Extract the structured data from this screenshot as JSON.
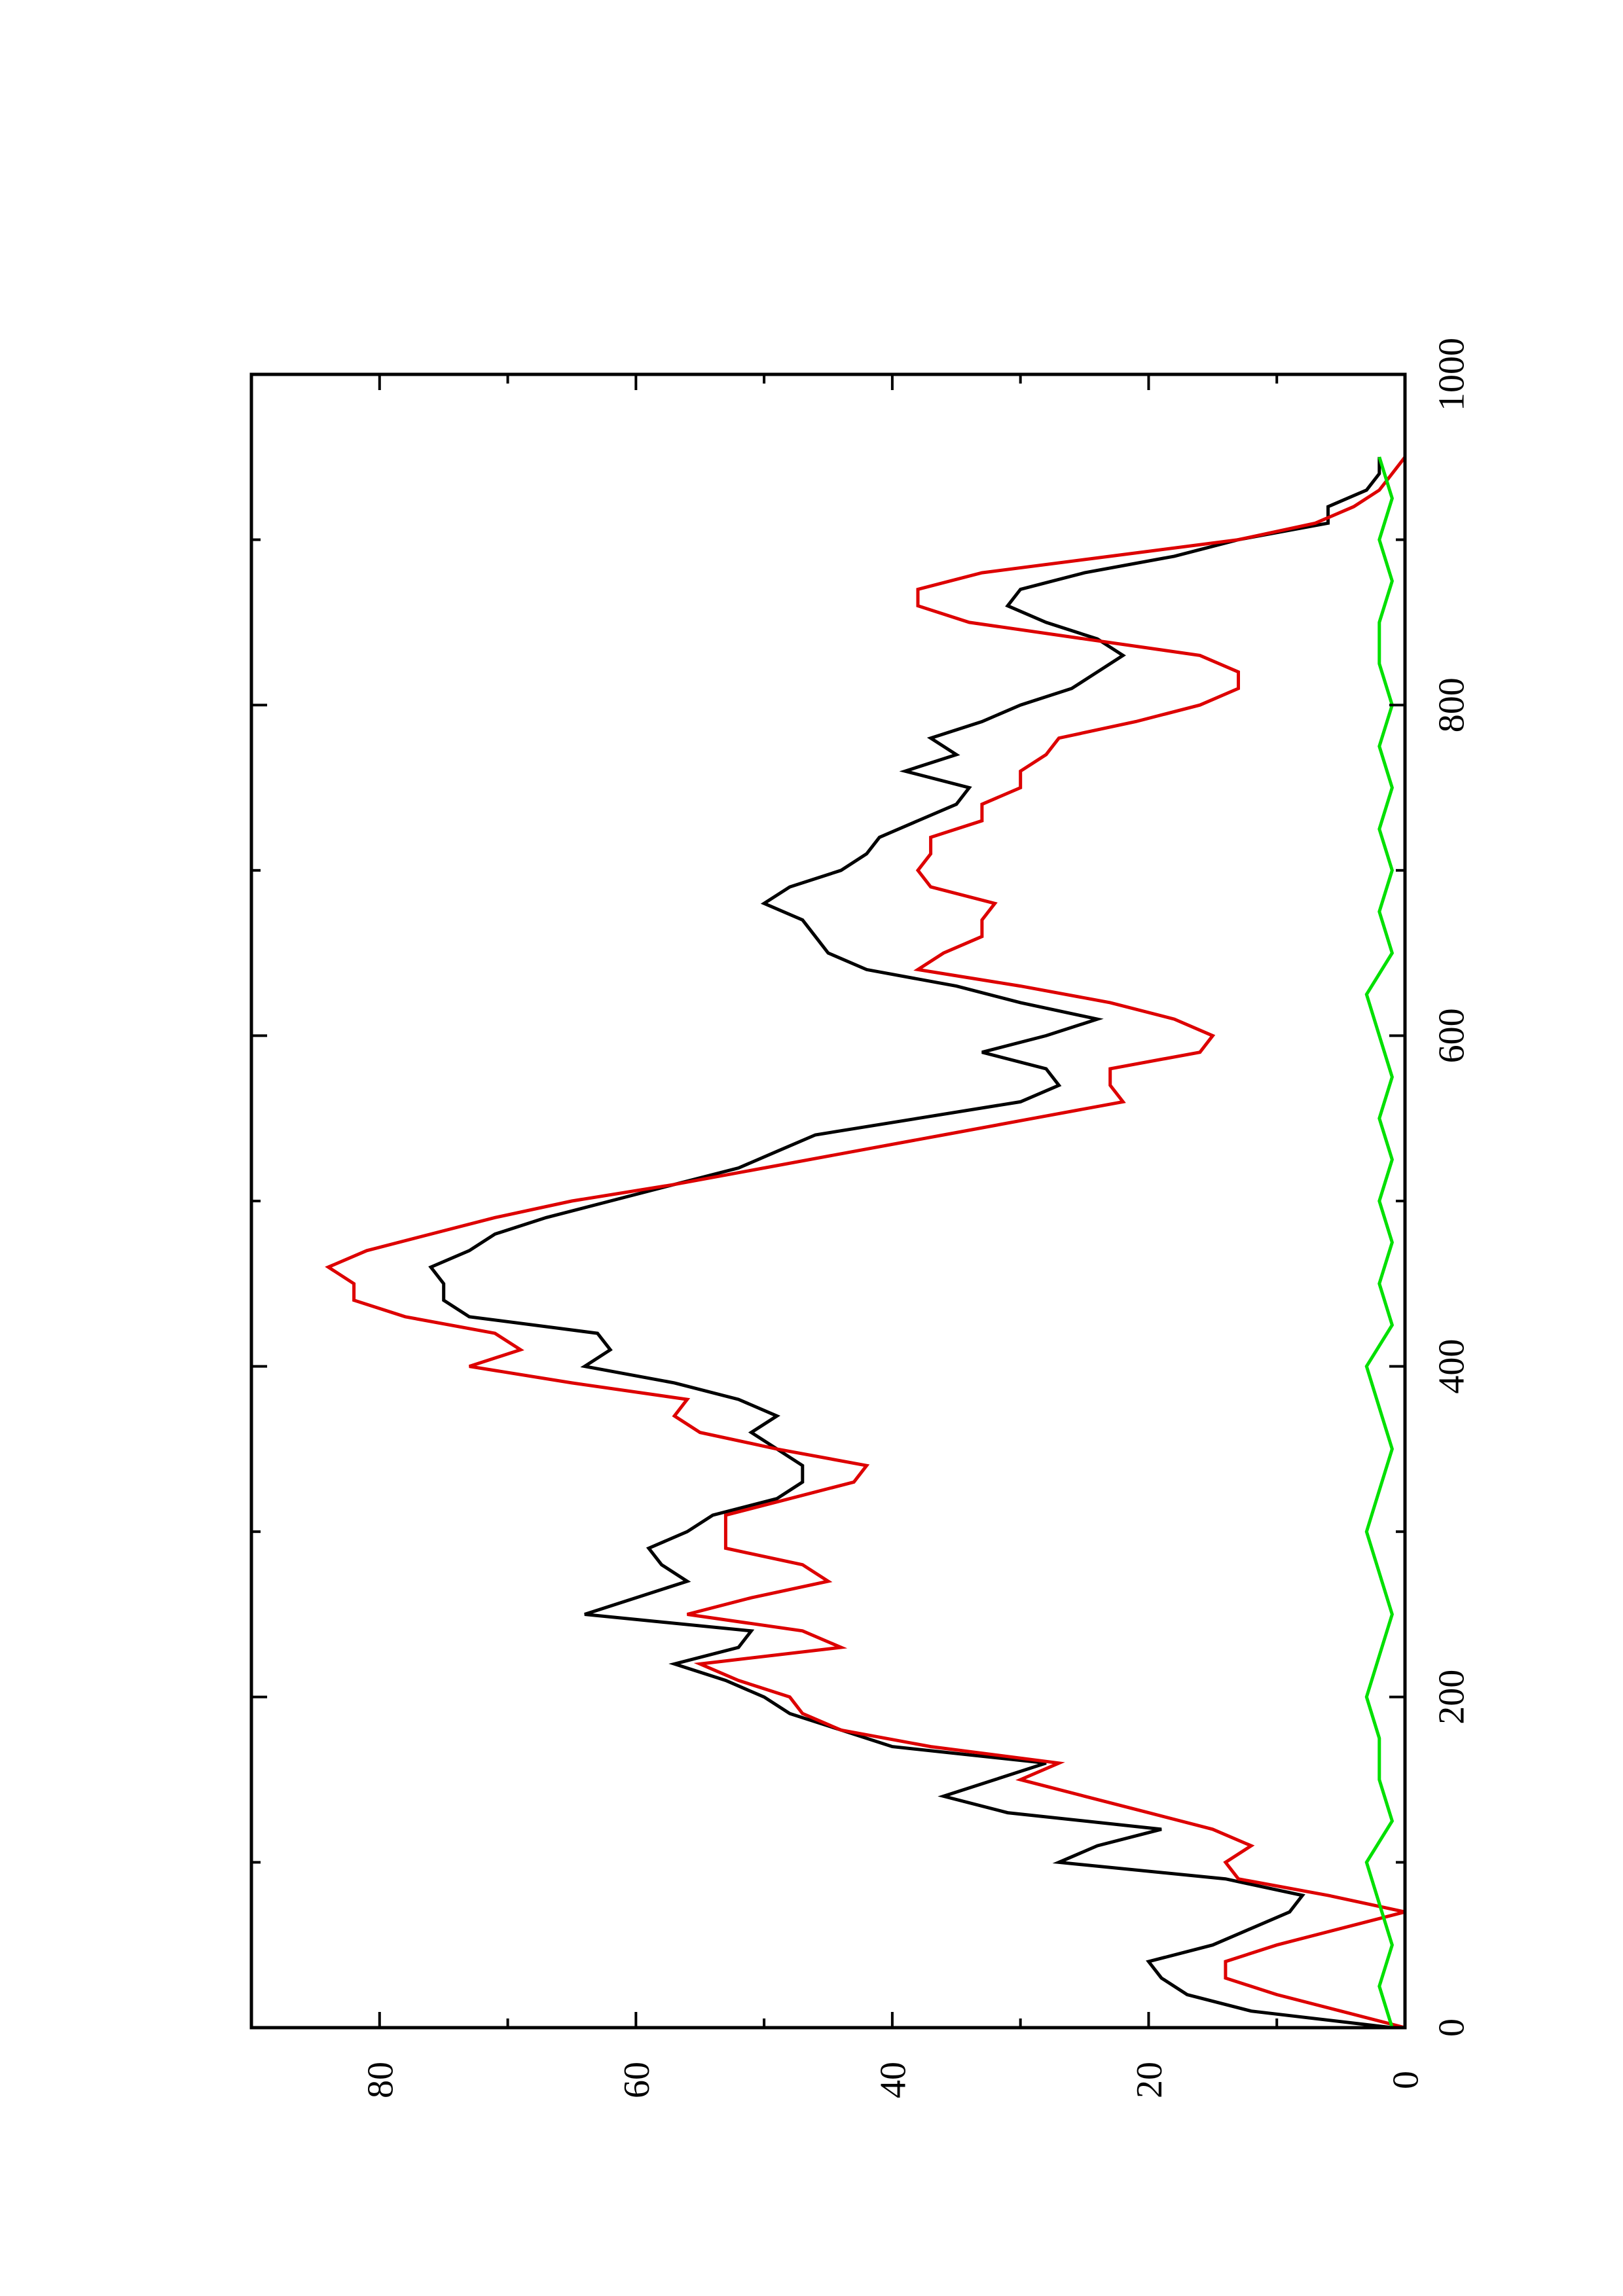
{
  "chart_data": {
    "type": "line",
    "orientation": "rotated-90-ccw",
    "title": "",
    "xlabel": "",
    "ylabel": "",
    "xlim": [
      0,
      1000
    ],
    "ylim": [
      0,
      90
    ],
    "x_ticks": [
      {
        "value": 0,
        "label": "0"
      },
      {
        "value": 200,
        "label": "200"
      },
      {
        "value": 400,
        "label": "400"
      },
      {
        "value": 600,
        "label": "600"
      },
      {
        "value": 800,
        "label": "800"
      },
      {
        "value": 1000,
        "label": "1000"
      }
    ],
    "x_minor_ticks": [
      100,
      300,
      500,
      700,
      900
    ],
    "y_ticks": [
      {
        "value": 0,
        "label": "0"
      },
      {
        "value": 20,
        "label": "20"
      },
      {
        "value": 40,
        "label": "40"
      },
      {
        "value": 60,
        "label": "60"
      },
      {
        "value": 80,
        "label": "80"
      }
    ],
    "y_minor_ticks": [
      10,
      30,
      50,
      70
    ],
    "grid": false,
    "legend": "none",
    "series": [
      {
        "color": "#000000",
        "x": [
          0,
          10,
          20,
          30,
          40,
          50,
          60,
          70,
          80,
          90,
          100,
          110,
          120,
          130,
          140,
          150,
          160,
          170,
          180,
          190,
          200,
          210,
          220,
          230,
          240,
          250,
          260,
          270,
          280,
          290,
          300,
          310,
          320,
          330,
          340,
          350,
          360,
          370,
          380,
          390,
          400,
          410,
          420,
          430,
          440,
          450,
          460,
          470,
          480,
          490,
          500,
          510,
          520,
          530,
          540,
          550,
          560,
          570,
          580,
          590,
          600,
          610,
          620,
          630,
          640,
          650,
          660,
          670,
          680,
          690,
          700,
          710,
          720,
          730,
          740,
          750,
          760,
          770,
          780,
          790,
          800,
          810,
          820,
          830,
          840,
          850,
          860,
          870,
          880,
          890,
          900,
          910,
          920,
          930,
          940,
          950
        ],
        "y": [
          1,
          12,
          17,
          19,
          20,
          15,
          12,
          9,
          8,
          14,
          27,
          24,
          19,
          31,
          36,
          32,
          28,
          40,
          44,
          48,
          50,
          53,
          57,
          52,
          51,
          64,
          60,
          56,
          58,
          59,
          56,
          54,
          49,
          47,
          47,
          49,
          51,
          49,
          52,
          57,
          64,
          62,
          63,
          73,
          75,
          75,
          76,
          73,
          71,
          67,
          62,
          57,
          52,
          49,
          46,
          38,
          30,
          27,
          28,
          33,
          28,
          24,
          30,
          35,
          42,
          45,
          46,
          47,
          50,
          48,
          44,
          42,
          41,
          38,
          35,
          34,
          39,
          35,
          37,
          33,
          30,
          26,
          24,
          22,
          24,
          28,
          31,
          30,
          25,
          18,
          13,
          6,
          6,
          3,
          2,
          2
        ]
      },
      {
        "color": "#dd0000",
        "x": [
          0,
          10,
          20,
          30,
          40,
          50,
          60,
          70,
          80,
          90,
          100,
          110,
          120,
          130,
          140,
          150,
          160,
          170,
          180,
          190,
          200,
          210,
          220,
          230,
          240,
          250,
          260,
          270,
          280,
          290,
          300,
          310,
          320,
          330,
          340,
          350,
          360,
          370,
          380,
          390,
          400,
          410,
          420,
          430,
          440,
          450,
          460,
          470,
          480,
          490,
          500,
          510,
          520,
          530,
          540,
          550,
          560,
          570,
          580,
          590,
          600,
          610,
          620,
          630,
          640,
          650,
          660,
          670,
          680,
          690,
          700,
          710,
          720,
          730,
          740,
          750,
          760,
          770,
          780,
          790,
          800,
          810,
          820,
          830,
          840,
          850,
          860,
          870,
          880,
          890,
          900,
          910,
          920,
          930,
          940,
          950
        ],
        "y": [
          0,
          5,
          10,
          14,
          14,
          10,
          5,
          0,
          6,
          13,
          14,
          12,
          15,
          20,
          25,
          30,
          27,
          37,
          44,
          47,
          48,
          52,
          55,
          44,
          47,
          56,
          51,
          45,
          47,
          53,
          53,
          53,
          48,
          43,
          42,
          49,
          55,
          57,
          56,
          65,
          73,
          69,
          71,
          78,
          82,
          82,
          84,
          81,
          76,
          71,
          65,
          57,
          50,
          43,
          36,
          29,
          22,
          23,
          23,
          16,
          15,
          18,
          23,
          30,
          38,
          36,
          33,
          33,
          32,
          37,
          38,
          37,
          37,
          33,
          33,
          30,
          30,
          28,
          27,
          21,
          16,
          13,
          13,
          16,
          25,
          34,
          38,
          38,
          33,
          23,
          13,
          7,
          4,
          2,
          1,
          0
        ]
      },
      {
        "color": "#00e000",
        "x": [
          0,
          25,
          50,
          75,
          100,
          125,
          150,
          175,
          200,
          225,
          250,
          275,
          300,
          325,
          350,
          375,
          400,
          425,
          450,
          475,
          500,
          525,
          550,
          575,
          600,
          625,
          650,
          675,
          700,
          725,
          750,
          775,
          800,
          825,
          850,
          875,
          900,
          925,
          950
        ],
        "y": [
          1,
          2,
          1,
          2,
          3,
          1,
          2,
          2,
          3,
          2,
          1,
          2,
          3,
          2,
          1,
          2,
          3,
          1,
          2,
          1,
          2,
          1,
          2,
          1,
          2,
          3,
          1,
          2,
          1,
          2,
          1,
          2,
          1,
          2,
          2,
          1,
          2,
          1,
          2
        ]
      }
    ]
  }
}
